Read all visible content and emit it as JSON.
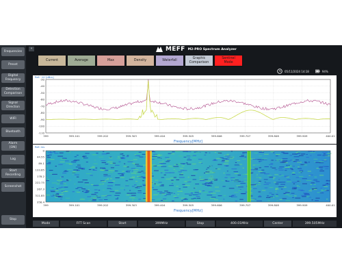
{
  "app": {
    "logo": "MEFF",
    "title": "M2-PRO Spectrum Analyzer"
  },
  "colors": {
    "tab_current": "#c8b89a",
    "tab_average": "#9fac95",
    "tab_max": "#d7a09a",
    "tab_density": "#d4b59e",
    "tab_waterfall": "#b4a8d2",
    "tab_graphic": "#c4cbd6",
    "tab_sentinel": "#ff2020",
    "trace_main": "#c8d94a",
    "trace_max": "#b04a8a",
    "axis_label": "#2a74c9"
  },
  "sidebar": {
    "items": [
      {
        "label": "Frequencies"
      },
      {
        "label": "Preset"
      },
      {
        "label": "Digital\nFrequency"
      },
      {
        "label": "Detection\nComparison"
      },
      {
        "label": "Signal\nDirection"
      },
      {
        "label": "WIFI"
      },
      {
        "label": "Bluetooth"
      },
      {
        "label": "Alarm\n[ON]"
      },
      {
        "label": "Log"
      },
      {
        "label": "Start\nRecording"
      },
      {
        "label": "Screenshot"
      }
    ],
    "stop_label": "Stop"
  },
  "collapse_button": "«",
  "tabs": [
    {
      "label": "Current"
    },
    {
      "label": "Average"
    },
    {
      "label": "Max"
    },
    {
      "label": "Density"
    },
    {
      "label": "Waterfall"
    },
    {
      "label": "Graphic\nComparison"
    },
    {
      "label": "Sentinel\nMode"
    }
  ],
  "status": {
    "clock_icon": "clock-icon",
    "datetime": "05/11/2024 14:18",
    "battery_icon": "battery-icon",
    "battery": "94%"
  },
  "spectrum": {
    "ref_label": "Ref: -10 [dBm]",
    "y_ticks": [
      "-30",
      "-40",
      "-50",
      "-60",
      "-70",
      "-80",
      "-90",
      "-100",
      "-110"
    ],
    "x_ticks": [
      "399",
      "399.101",
      "399.202",
      "399.303",
      "399.404",
      "399.505",
      "399.606",
      "399.707",
      "399.808",
      "399.909",
      "400.01"
    ],
    "xlabel": "Frequency[MHz]"
  },
  "waterfall": {
    "ref_label": "Ref: ms",
    "y_ticks": [
      "0",
      "44.55",
      "89.1",
      "133.65",
      "178.2",
      "222.75",
      "267.3",
      "311.85",
      "356.4"
    ],
    "x_ticks": [
      "399",
      "399.101",
      "399.202",
      "399.303",
      "399.404",
      "399.505",
      "399.606",
      "399.707",
      "399.808",
      "399.909",
      "400.01"
    ],
    "xlabel": "Frequency[MHz]"
  },
  "bottom_bar": [
    {
      "label": "Mode",
      "value": "FFT Scan"
    },
    {
      "label": "Start",
      "value": "399MHz"
    },
    {
      "label": "Stop",
      "value": "400.01MHz"
    },
    {
      "label": "Center",
      "value": "399.505MHz"
    }
  ]
}
